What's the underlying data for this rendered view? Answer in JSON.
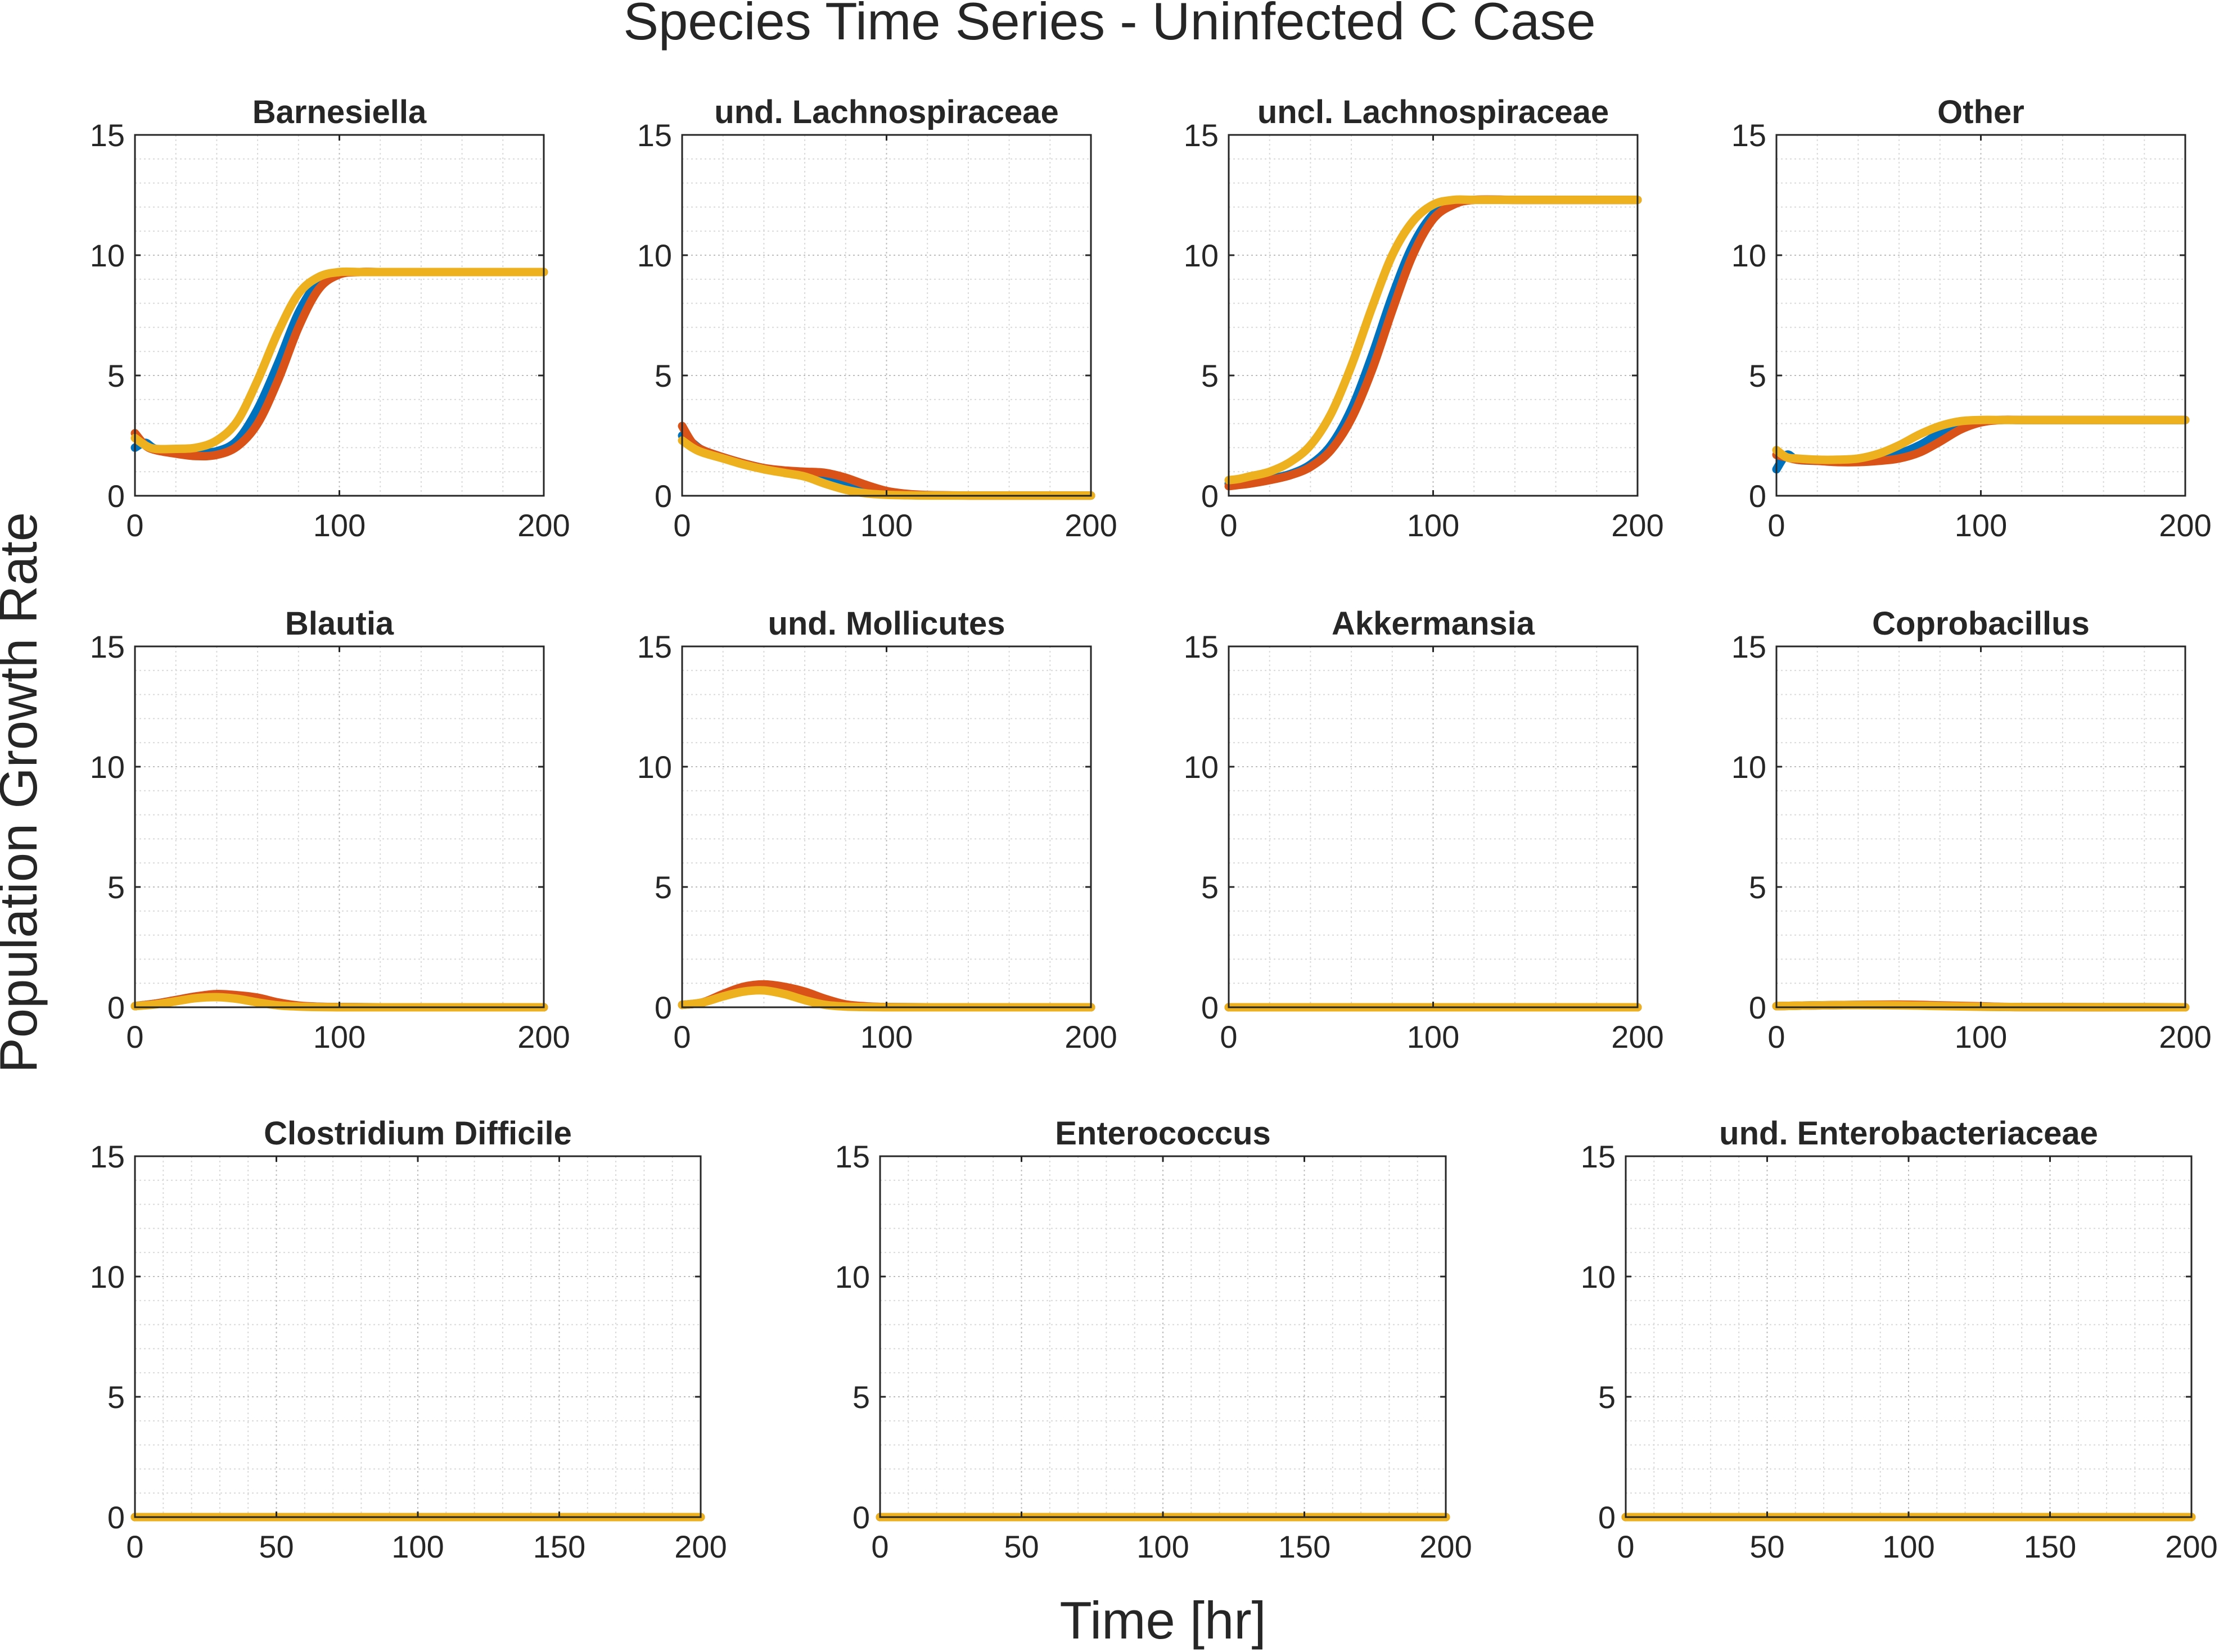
{
  "figure": {
    "title": "Species Time Series - Uninfected C Case",
    "xlabel": "Time [hr]",
    "ylabel": "Population Growth Rate"
  },
  "colors": {
    "series": [
      "#0072BD",
      "#D95319",
      "#EDB120"
    ],
    "axis": "#262626",
    "grid_minor": "#d9d9d9",
    "grid_major": "#bdbdbd"
  },
  "chart_data": [
    {
      "type": "line",
      "title": "Barnesiella",
      "xlim": [
        0,
        200
      ],
      "ylim": [
        0,
        15
      ],
      "xticks": [
        0,
        100,
        200
      ],
      "yticks": [
        0,
        5,
        10,
        15
      ],
      "grid": true,
      "x": [
        0,
        5,
        10,
        20,
        30,
        40,
        50,
        60,
        70,
        80,
        90,
        100,
        110,
        120,
        140,
        160,
        180,
        200
      ],
      "series": [
        {
          "values": [
            2.0,
            2.2,
            1.95,
            1.85,
            1.8,
            1.85,
            2.3,
            3.6,
            5.5,
            7.6,
            8.9,
            9.25,
            9.3,
            9.3,
            9.3,
            9.3,
            9.3,
            9.3
          ]
        },
        {
          "values": [
            2.6,
            2.1,
            1.9,
            1.75,
            1.65,
            1.7,
            2.05,
            3.0,
            4.8,
            7.0,
            8.6,
            9.2,
            9.3,
            9.3,
            9.3,
            9.3,
            9.3,
            9.3
          ]
        },
        {
          "values": [
            2.4,
            2.1,
            1.95,
            1.95,
            2.0,
            2.3,
            3.1,
            4.8,
            6.8,
            8.4,
            9.1,
            9.3,
            9.3,
            9.3,
            9.3,
            9.3,
            9.3,
            9.3
          ]
        }
      ]
    },
    {
      "type": "line",
      "title": "und. Lachnospiraceae",
      "xlim": [
        0,
        200
      ],
      "ylim": [
        0,
        15
      ],
      "xticks": [
        0,
        100,
        200
      ],
      "yticks": [
        0,
        5,
        10,
        15
      ],
      "grid": true,
      "x": [
        0,
        5,
        10,
        20,
        30,
        40,
        50,
        60,
        70,
        80,
        90,
        100,
        110,
        120,
        140,
        160,
        180,
        200
      ],
      "series": [
        {
          "values": [
            2.5,
            2.2,
            1.9,
            1.6,
            1.35,
            1.15,
            1.0,
            0.95,
            0.8,
            0.55,
            0.3,
            0.12,
            0.05,
            0.02,
            0.01,
            0.01,
            0.01,
            0.01
          ]
        },
        {
          "values": [
            2.9,
            2.2,
            1.9,
            1.6,
            1.35,
            1.15,
            1.05,
            1.0,
            0.95,
            0.75,
            0.45,
            0.2,
            0.08,
            0.03,
            0.01,
            0.01,
            0.01,
            0.01
          ]
        },
        {
          "values": [
            2.3,
            2.0,
            1.8,
            1.55,
            1.3,
            1.1,
            0.95,
            0.8,
            0.5,
            0.25,
            0.1,
            0.04,
            0.02,
            0.01,
            0.01,
            0.01,
            0.01,
            0.01
          ]
        }
      ]
    },
    {
      "type": "line",
      "title": "uncl. Lachnospiraceae",
      "xlim": [
        0,
        200
      ],
      "ylim": [
        0,
        15
      ],
      "xticks": [
        0,
        100,
        200
      ],
      "yticks": [
        0,
        5,
        10,
        15
      ],
      "grid": true,
      "x": [
        0,
        5,
        10,
        20,
        30,
        40,
        50,
        60,
        70,
        80,
        90,
        100,
        110,
        120,
        140,
        160,
        180,
        200
      ],
      "series": [
        {
          "values": [
            0.5,
            0.5,
            0.55,
            0.7,
            0.9,
            1.3,
            2.1,
            3.6,
            5.8,
            8.3,
            10.4,
            11.7,
            12.2,
            12.3,
            12.3,
            12.3,
            12.3,
            12.3
          ]
        },
        {
          "values": [
            0.4,
            0.45,
            0.5,
            0.65,
            0.85,
            1.2,
            1.9,
            3.2,
            5.2,
            7.7,
            10.0,
            11.5,
            12.1,
            12.3,
            12.3,
            12.3,
            12.3,
            12.3
          ]
        },
        {
          "values": [
            0.65,
            0.7,
            0.8,
            1.0,
            1.4,
            2.1,
            3.4,
            5.4,
            7.8,
            10.0,
            11.4,
            12.1,
            12.3,
            12.3,
            12.3,
            12.3,
            12.3,
            12.3
          ]
        }
      ]
    },
    {
      "type": "line",
      "title": "Other",
      "xlim": [
        0,
        200
      ],
      "ylim": [
        0,
        15
      ],
      "xticks": [
        0,
        100,
        200
      ],
      "yticks": [
        0,
        5,
        10,
        15
      ],
      "grid": true,
      "x": [
        0,
        5,
        10,
        20,
        30,
        40,
        50,
        60,
        70,
        80,
        90,
        100,
        110,
        120,
        140,
        160,
        180,
        200
      ],
      "series": [
        {
          "values": [
            1.1,
            1.7,
            1.5,
            1.45,
            1.45,
            1.45,
            1.55,
            1.75,
            2.1,
            2.6,
            2.95,
            3.1,
            3.15,
            3.15,
            3.15,
            3.15,
            3.15,
            3.15
          ]
        },
        {
          "values": [
            1.7,
            1.6,
            1.5,
            1.45,
            1.4,
            1.4,
            1.45,
            1.55,
            1.8,
            2.25,
            2.75,
            3.05,
            3.15,
            3.15,
            3.15,
            3.15,
            3.15,
            3.15
          ]
        },
        {
          "values": [
            1.9,
            1.6,
            1.55,
            1.5,
            1.5,
            1.55,
            1.75,
            2.1,
            2.55,
            2.9,
            3.1,
            3.15,
            3.15,
            3.15,
            3.15,
            3.15,
            3.15,
            3.15
          ]
        }
      ]
    },
    {
      "type": "line",
      "title": "Blautia",
      "xlim": [
        0,
        200
      ],
      "ylim": [
        0,
        15
      ],
      "xticks": [
        0,
        100,
        200
      ],
      "yticks": [
        0,
        5,
        10,
        15
      ],
      "grid": true,
      "x": [
        0,
        10,
        20,
        30,
        40,
        50,
        60,
        70,
        80,
        90,
        100,
        120,
        140,
        160,
        180,
        200
      ],
      "series": [
        {
          "values": [
            0.05,
            0.15,
            0.3,
            0.45,
            0.5,
            0.45,
            0.3,
            0.15,
            0.05,
            0.02,
            0.01,
            0,
            0,
            0,
            0,
            0
          ]
        },
        {
          "values": [
            0.05,
            0.15,
            0.3,
            0.45,
            0.55,
            0.5,
            0.4,
            0.2,
            0.07,
            0.02,
            0.01,
            0,
            0,
            0,
            0,
            0
          ]
        },
        {
          "values": [
            0.05,
            0.12,
            0.25,
            0.38,
            0.42,
            0.35,
            0.2,
            0.08,
            0.03,
            0.01,
            0,
            0,
            0,
            0,
            0,
            0
          ]
        }
      ]
    },
    {
      "type": "line",
      "title": "und. Mollicutes",
      "xlim": [
        0,
        200
      ],
      "ylim": [
        0,
        15
      ],
      "xticks": [
        0,
        100,
        200
      ],
      "yticks": [
        0,
        5,
        10,
        15
      ],
      "grid": true,
      "x": [
        0,
        10,
        20,
        30,
        40,
        50,
        60,
        70,
        80,
        90,
        100,
        120,
        140,
        160,
        180,
        200
      ],
      "series": [
        {
          "values": [
            0.1,
            0.2,
            0.5,
            0.8,
            0.85,
            0.75,
            0.5,
            0.25,
            0.08,
            0.02,
            0.01,
            0,
            0,
            0,
            0,
            0
          ]
        },
        {
          "values": [
            0.1,
            0.2,
            0.55,
            0.85,
            0.95,
            0.85,
            0.65,
            0.35,
            0.12,
            0.04,
            0.01,
            0,
            0,
            0,
            0,
            0
          ]
        },
        {
          "values": [
            0.1,
            0.2,
            0.45,
            0.65,
            0.7,
            0.55,
            0.3,
            0.1,
            0.03,
            0.01,
            0,
            0,
            0,
            0,
            0,
            0
          ]
        }
      ]
    },
    {
      "type": "line",
      "title": "Akkermansia",
      "xlim": [
        0,
        200
      ],
      "ylim": [
        0,
        15
      ],
      "xticks": [
        0,
        100,
        200
      ],
      "yticks": [
        0,
        5,
        10,
        15
      ],
      "grid": true,
      "x": [
        0,
        200
      ],
      "series": [
        {
          "values": [
            0,
            0
          ]
        },
        {
          "values": [
            0,
            0
          ]
        },
        {
          "values": [
            0,
            0
          ]
        }
      ]
    },
    {
      "type": "line",
      "title": "Coprobacillus",
      "xlim": [
        0,
        200
      ],
      "ylim": [
        0,
        15
      ],
      "xticks": [
        0,
        100,
        200
      ],
      "yticks": [
        0,
        5,
        10,
        15
      ],
      "grid": true,
      "x": [
        0,
        20,
        40,
        60,
        80,
        100,
        120,
        200
      ],
      "series": [
        {
          "values": [
            0.05,
            0.08,
            0.1,
            0.1,
            0.07,
            0.03,
            0.01,
            0
          ]
        },
        {
          "values": [
            0.05,
            0.08,
            0.1,
            0.11,
            0.08,
            0.04,
            0.01,
            0
          ]
        },
        {
          "values": [
            0.05,
            0.08,
            0.09,
            0.08,
            0.05,
            0.02,
            0.01,
            0
          ]
        }
      ]
    },
    {
      "type": "line",
      "title": "Clostridium Difficile",
      "xlim": [
        0,
        200
      ],
      "ylim": [
        0,
        15
      ],
      "xticks": [
        0,
        50,
        100,
        150,
        200
      ],
      "yticks": [
        0,
        5,
        10,
        15
      ],
      "grid": true,
      "x": [
        0,
        200
      ],
      "series": [
        {
          "values": [
            0,
            0
          ]
        },
        {
          "values": [
            0,
            0
          ]
        },
        {
          "values": [
            0,
            0
          ]
        }
      ]
    },
    {
      "type": "line",
      "title": "Enterococcus",
      "xlim": [
        0,
        200
      ],
      "ylim": [
        0,
        15
      ],
      "xticks": [
        0,
        50,
        100,
        150,
        200
      ],
      "yticks": [
        0,
        5,
        10,
        15
      ],
      "grid": true,
      "x": [
        0,
        200
      ],
      "series": [
        {
          "values": [
            0,
            0
          ]
        },
        {
          "values": [
            0,
            0
          ]
        },
        {
          "values": [
            0,
            0
          ]
        }
      ]
    },
    {
      "type": "line",
      "title": "und. Enterobacteriaceae",
      "xlim": [
        0,
        200
      ],
      "ylim": [
        0,
        15
      ],
      "xticks": [
        0,
        50,
        100,
        150,
        200
      ],
      "yticks": [
        0,
        5,
        10,
        15
      ],
      "grid": true,
      "x": [
        0,
        200
      ],
      "series": [
        {
          "values": [
            0,
            0
          ]
        },
        {
          "values": [
            0,
            0
          ]
        },
        {
          "values": [
            0,
            0
          ]
        }
      ]
    }
  ]
}
